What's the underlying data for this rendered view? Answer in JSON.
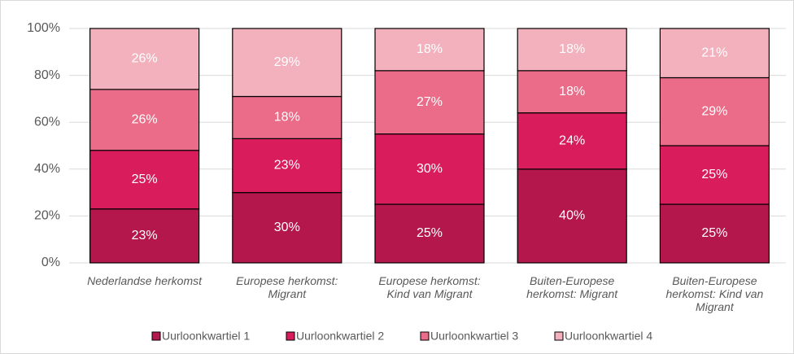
{
  "chart_data": {
    "type": "stacked_bar",
    "categories": [
      "Nederlandse herkomst",
      "Europese herkomst: Migrant",
      "Europese herkomst: Kind van Migrant",
      "Buiten-Europese herkomst: Migrant",
      "Buiten-Europese herkomst: Kind van Migrant"
    ],
    "series": [
      {
        "name": "Uurloonkwartiel 1",
        "color": "#b3174b",
        "values": [
          23,
          30,
          25,
          40,
          25
        ],
        "value_labels": [
          "23%",
          "30%",
          "25%",
          "40%",
          "25%"
        ]
      },
      {
        "name": "Uurloonkwartiel 2",
        "color": "#d91c5c",
        "values": [
          25,
          23,
          30,
          24,
          25
        ],
        "value_labels": [
          "25%",
          "23%",
          "30%",
          "24%",
          "25%"
        ]
      },
      {
        "name": "Uurloonkwartiel 3",
        "color": "#ea6c88",
        "values": [
          26,
          18,
          27,
          18,
          29
        ],
        "value_labels": [
          "26%",
          "18%",
          "27%",
          "18%",
          "29%"
        ]
      },
      {
        "name": "Uurloonkwartiel 4",
        "color": "#f2b1bd",
        "values": [
          26,
          29,
          18,
          18,
          21
        ],
        "value_labels": [
          "26%",
          "29%",
          "18%",
          "18%",
          "21%"
        ]
      }
    ],
    "ylim": [
      0,
      100
    ],
    "yticks": [
      {
        "value": 0,
        "label": "0%"
      },
      {
        "value": 20,
        "label": "20%"
      },
      {
        "value": 40,
        "label": "40%"
      },
      {
        "value": 60,
        "label": "60%"
      },
      {
        "value": 80,
        "label": "80%"
      },
      {
        "value": 100,
        "label": "100%"
      }
    ],
    "grid": true,
    "legend": "bottom"
  }
}
